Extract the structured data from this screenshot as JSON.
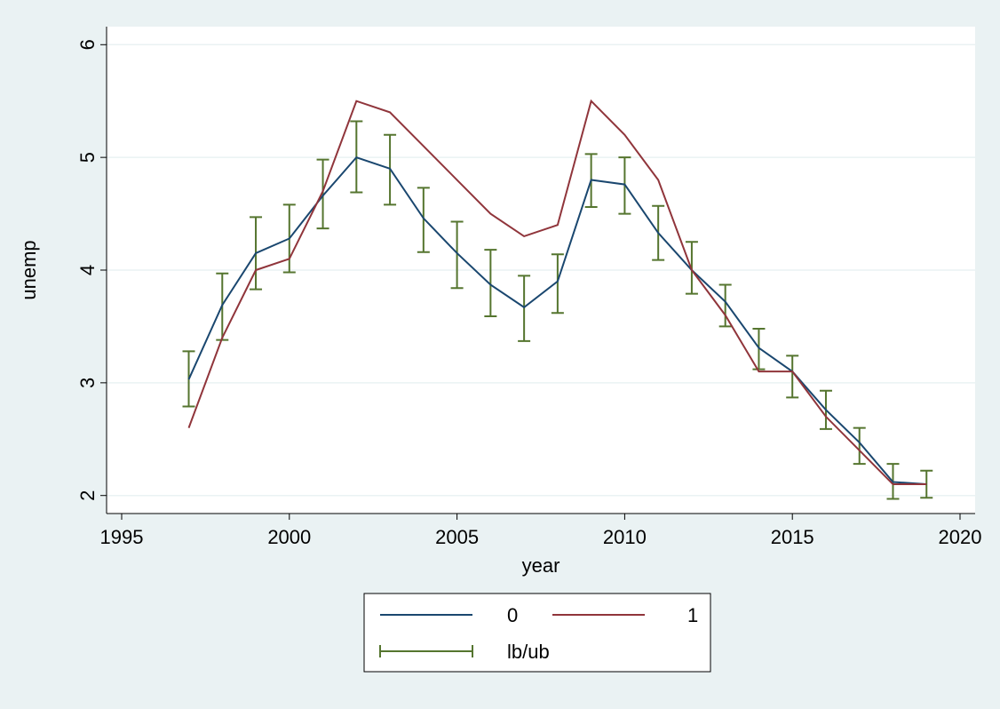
{
  "chart_data": {
    "type": "line",
    "xlabel": "year",
    "ylabel": "unemp",
    "x": [
      1997,
      1998,
      1999,
      2000,
      2001,
      2002,
      2003,
      2004,
      2005,
      2006,
      2007,
      2008,
      2009,
      2010,
      2011,
      2012,
      2013,
      2014,
      2015,
      2016,
      2017,
      2018,
      2019
    ],
    "series": [
      {
        "name": "0",
        "color": "#1a476f",
        "values": [
          3.03,
          3.69,
          4.15,
          4.28,
          4.66,
          5.0,
          4.9,
          4.46,
          4.15,
          3.87,
          3.67,
          3.9,
          4.8,
          4.76,
          4.33,
          4.0,
          3.72,
          3.31,
          3.1,
          2.76,
          2.47,
          2.12,
          2.1
        ]
      },
      {
        "name": "1",
        "color": "#90353b",
        "values": [
          2.6,
          3.4,
          4.0,
          4.1,
          4.7,
          5.5,
          5.4,
          5.1,
          4.8,
          4.5,
          4.3,
          4.4,
          5.5,
          5.2,
          4.8,
          4.0,
          3.6,
          3.1,
          3.1,
          2.7,
          2.4,
          2.1,
          2.1
        ]
      },
      {
        "name": "lb/ub",
        "color": "#55752f",
        "type": "rcap",
        "lower": [
          2.79,
          3.38,
          3.83,
          3.98,
          4.37,
          4.69,
          4.58,
          4.16,
          3.84,
          3.59,
          3.37,
          3.62,
          4.56,
          4.5,
          4.09,
          3.79,
          3.5,
          3.12,
          2.87,
          2.59,
          2.28,
          1.97,
          1.98
        ],
        "upper": [
          3.28,
          3.97,
          4.47,
          4.58,
          4.98,
          5.32,
          5.2,
          4.73,
          4.43,
          4.18,
          3.95,
          4.14,
          5.03,
          5.0,
          4.57,
          4.25,
          3.87,
          3.48,
          3.24,
          2.93,
          2.6,
          2.28,
          2.22
        ]
      }
    ],
    "xlim": [
      1994.55,
      2020.45
    ],
    "xticks": [
      1995,
      2000,
      2005,
      2010,
      2015,
      2020
    ],
    "ylim": [
      1.84,
      6.16
    ],
    "yticks": [
      2,
      3,
      4,
      5,
      6
    ],
    "grid": true
  }
}
